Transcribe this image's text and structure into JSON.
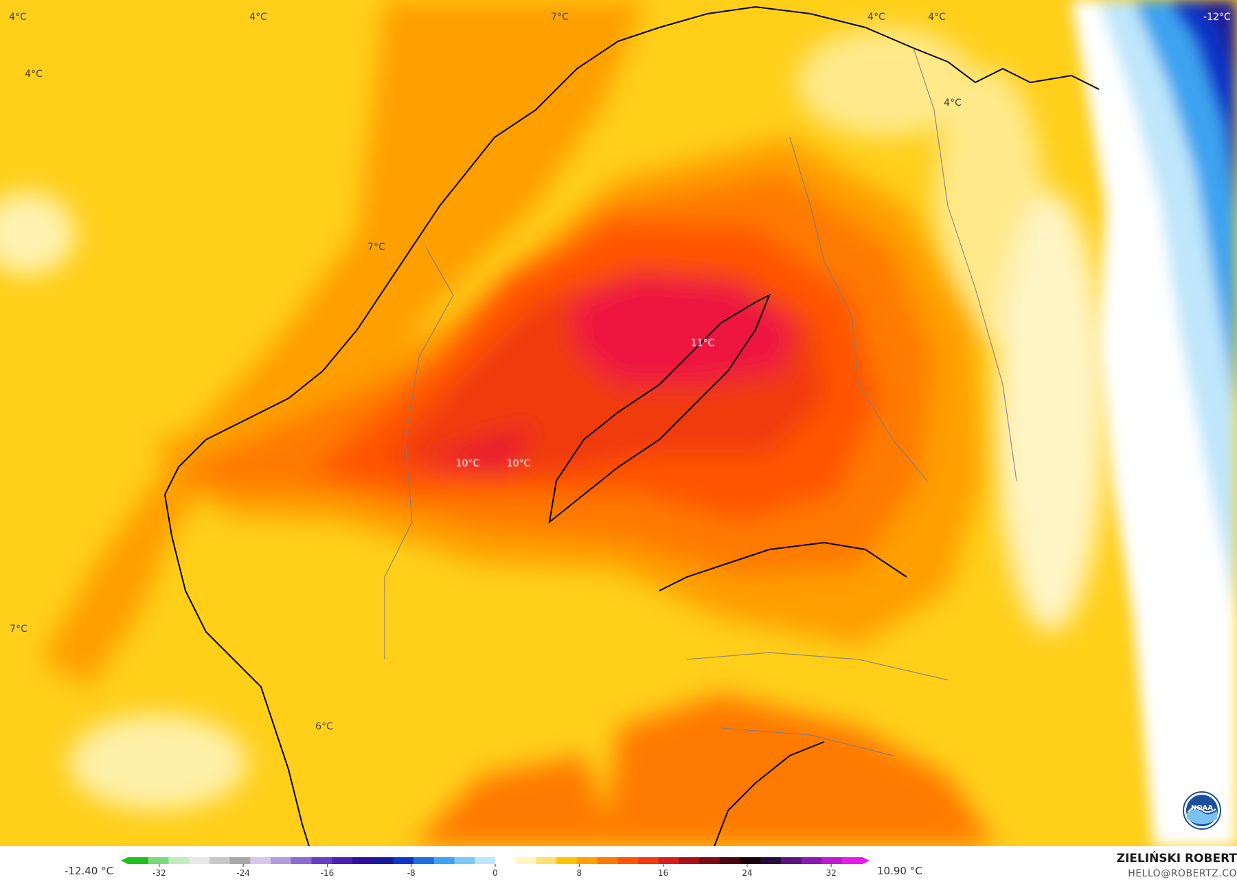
{
  "map": {
    "temperature_labels": [
      {
        "text": "4°C"
      },
      {
        "text": "4°C"
      },
      {
        "text": "7°C"
      },
      {
        "text": "4°C"
      },
      {
        "text": "4°C"
      },
      {
        "text": "-12°C"
      },
      {
        "text": "4°C"
      },
      {
        "text": "4°C"
      },
      {
        "text": "7°C"
      },
      {
        "text": "11°C"
      },
      {
        "text": "10°C"
      },
      {
        "text": "10°C"
      },
      {
        "text": "7°C"
      },
      {
        "text": "6°C"
      }
    ]
  },
  "legend": {
    "min_label": "-12.40 °C",
    "max_label": "10.90 °C",
    "ticks": [
      "-32",
      "-24",
      "-16",
      "-8",
      "0",
      "8",
      "16",
      "24",
      "32"
    ],
    "tick_values": [
      -32,
      -24,
      -16,
      -8,
      0,
      8,
      16,
      24,
      32
    ],
    "range": [
      -35,
      35
    ],
    "colors": [
      "#1fbf1f",
      "#7bd97b",
      "#c0ecc0",
      "#e8e8e8",
      "#c8c8c8",
      "#a8a8a8",
      "#d7c7ec",
      "#b39be0",
      "#8e6bd3",
      "#6a3dc6",
      "#4b1fb0",
      "#2d0f9c",
      "#1a1a9c",
      "#1036c8",
      "#1e6fe0",
      "#3ea3f0",
      "#7ccaf5",
      "#bfe6fa",
      "#ffffff",
      "#fff6c2",
      "#ffe070",
      "#ffc400",
      "#ff9f00",
      "#ff7a00",
      "#ff5500",
      "#f03a10",
      "#d61f1f",
      "#a8111a",
      "#7a0a14",
      "#4a0610",
      "#1a0308",
      "#2a0a3a",
      "#5a1480",
      "#8a1ab0",
      "#c01ad0",
      "#e81ae8"
    ]
  },
  "credits": {
    "author": "ZIELIŃSKI ROBERT",
    "email": "HELLO@ROBERTZ.CO",
    "logo_text": "NOAA"
  }
}
